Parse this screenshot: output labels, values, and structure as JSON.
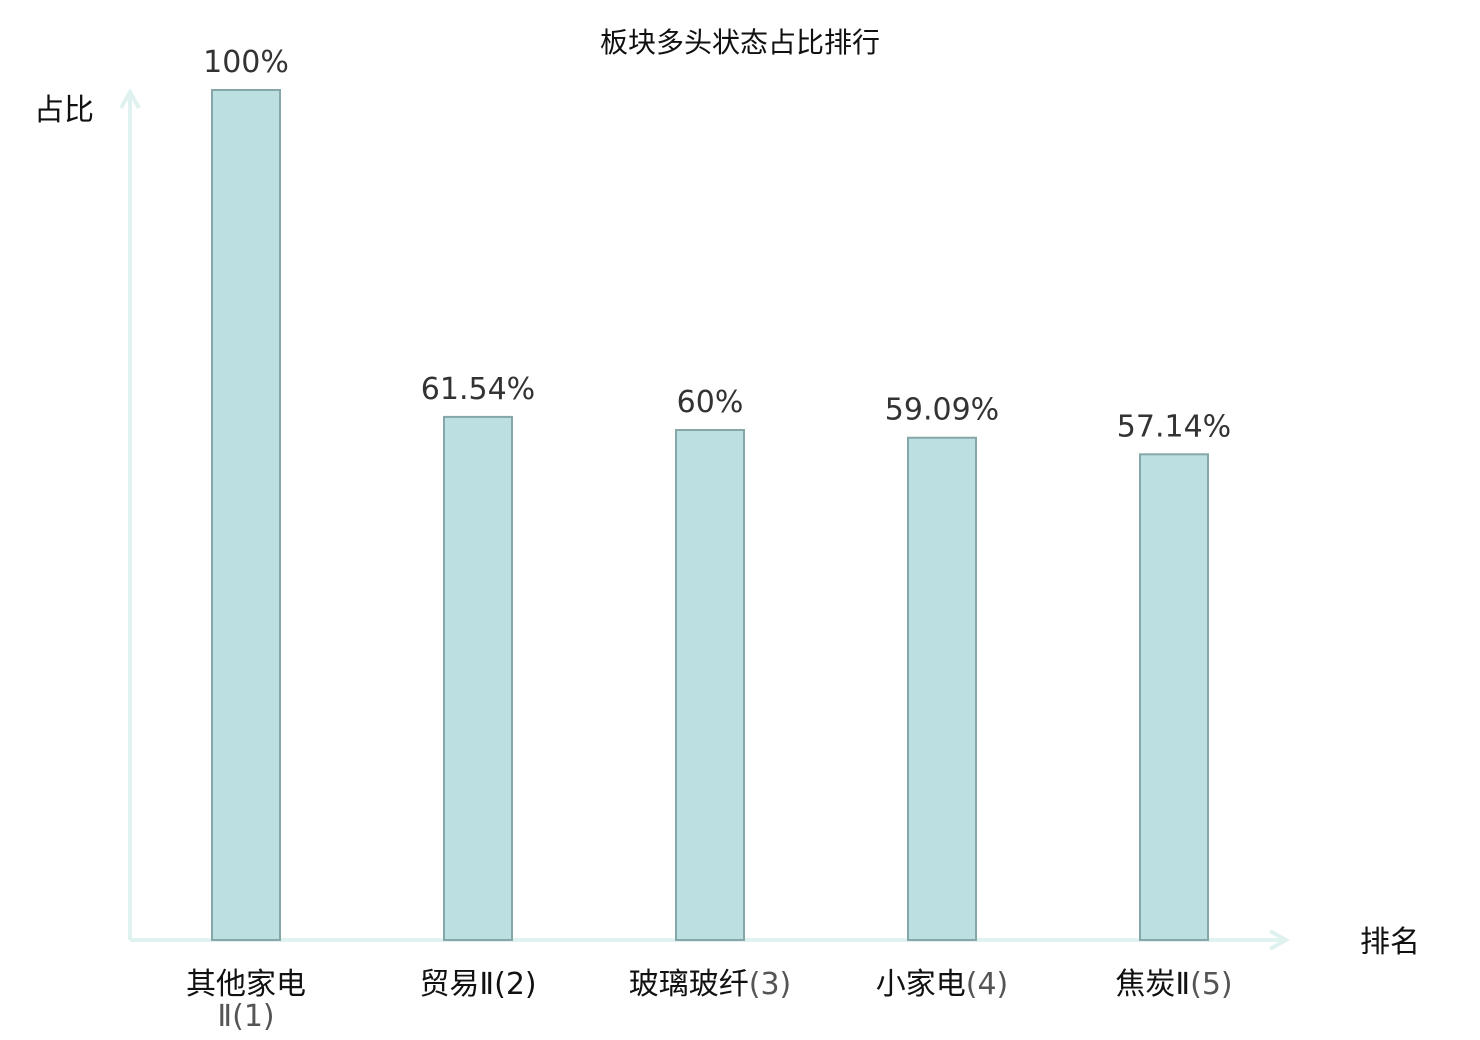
{
  "chart_data": {
    "type": "bar",
    "title": "板块多头状态占比排行",
    "ylabel": "占比",
    "xlabel": "排名",
    "ylim": [
      0,
      100
    ],
    "grid": false,
    "categories": [
      {
        "name": "其他家电Ⅱ",
        "rank": "(1)",
        "highlight": false
      },
      {
        "name": "贸易Ⅱ",
        "rank": "(2)",
        "highlight": true
      },
      {
        "name": "玻璃玻纤",
        "rank": "(3)",
        "highlight": false
      },
      {
        "name": "小家电",
        "rank": "(4)",
        "highlight": false
      },
      {
        "name": "焦炭Ⅱ",
        "rank": "(5)",
        "highlight": false
      }
    ],
    "values": [
      100,
      61.54,
      60,
      59.09,
      57.14
    ],
    "value_labels": [
      "100%",
      "61.54%",
      "60%",
      "59.09%",
      "57.14%"
    ],
    "colors": {
      "bar_fill": "#bce0e2",
      "bar_stroke": "#86a6a8",
      "axis": "#e0f2f0",
      "highlight_text": "#d42020",
      "text": "#111111"
    }
  }
}
